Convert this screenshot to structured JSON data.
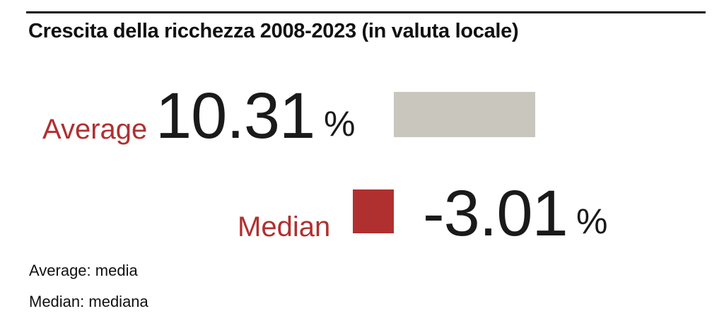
{
  "chart_data": {
    "type": "bar",
    "title": "Crescita della ricchezza 2008-2023 (in valuta locale)",
    "categories": [
      "Average",
      "Median"
    ],
    "values": [
      10.31,
      -3.01
    ],
    "value_labels": [
      "10.31",
      "-3.01"
    ],
    "unit": "%",
    "colors": {
      "Average": "#c9c6bd",
      "Median": "#b03030",
      "label": "#b03030",
      "text": "#1a1a1a"
    },
    "notes": [
      "Average: media",
      "Median: mediana"
    ]
  }
}
